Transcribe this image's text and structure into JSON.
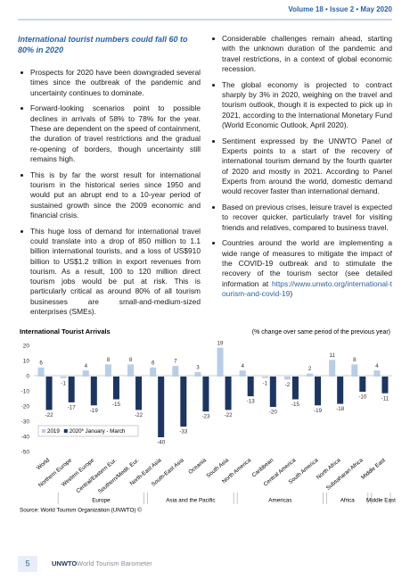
{
  "header": {
    "issue": "Volume 18 • Issue 2 • May 2020"
  },
  "left_column": {
    "heading": "International tourist numbers could fall 60 to 80% in 2020",
    "bullets": [
      "Prospects for 2020 have been downgraded several times since the outbreak of the pandemic and uncertainty continues to dominate.",
      "Forward-looking scenarios point to possible declines in arrivals of 58% to 78% for the year. These are dependent on the speed of containment, the duration of travel restrictions and the gradual re-opening of borders, though uncertainty still remains high.",
      "This is by far the worst result for international tourism in the historical series since 1950 and would put an abrupt end to a 10-year period of sustained growth since the 2009 economic and financial crisis.",
      "This huge loss of demand for international travel could translate into a drop of 850 million to 1.1 billion international tourists, and a loss of US$910 billion to US$1.2 trillion in export revenues from tourism. As a result, 100 to 120 million direct tourism jobs would be put at risk. This is particularly critical as around 80% of all tourism businesses are small-and-medium-sized enterprises (SMEs)."
    ]
  },
  "right_column": {
    "bullets": [
      "Considerable challenges remain ahead, starting with the unknown duration of the pandemic and travel restrictions, in a context of global economic recession.",
      "The global economy is projected to contract sharply by 3% in 2020, weighing on the travel and tourism outlook, though it is expected to pick up in 2021, according to the International Monetary Fund (World Economic Outlook, April 2020).",
      "Sentiment expressed by the UNWTO Panel of Experts points to a start of the recovery of international tourism demand by the fourth quarter of 2020 and mostly in 2021. According to Panel Experts from around the world, domestic demand would recover faster than international demand.",
      "Based on previous crises, leisure travel is expected to recover quicker, particularly travel for visiting friends and relatives, compared to business travel."
    ],
    "last_bullet": {
      "text": "Countries around the world are implementing a wide range of measures to mitigate the impact of the COVID-19 outbreak and to stimulate the recovery of the tourism sector (see detailed information at ",
      "link": "https://www.unwto.org/international-tourism-and-covid-19",
      "text_after": ")"
    }
  },
  "chart_data": {
    "type": "bar",
    "title": "International Tourist Arrivals",
    "subtitle": "(% change over same period of the previous year)",
    "categories": [
      "World",
      "Northern Europe",
      "Western Europe",
      "Central/Eastern Eur.",
      "Southern/Medit. Eur.",
      "North-East Asia",
      "South-East Asia",
      "Oceania",
      "South Asia",
      "North America",
      "Caribbean",
      "Central America",
      "South America",
      "North Africa",
      "Subsaharan Africa",
      "Middle East"
    ],
    "series": [
      {
        "name": "2019",
        "color": "#b8cde6",
        "values": [
          6,
          -1,
          4,
          8,
          8,
          6,
          7,
          3,
          19,
          4,
          -1,
          -2,
          2,
          11,
          8,
          4
        ]
      },
      {
        "name": "2020* January - March",
        "color": "#1c3563",
        "values": [
          -22,
          -17,
          -19,
          -15,
          -22,
          -40,
          -33,
          -23,
          -22,
          -13,
          -20,
          -15,
          -19,
          -18,
          -10,
          -11
        ]
      }
    ],
    "groups": [
      {
        "name": "Europe",
        "categories": [
          "Northern Europe",
          "Western Europe",
          "Central/Eastern Eur.",
          "Southern/Medit. Eur."
        ]
      },
      {
        "name": "Asia and the Pacific",
        "categories": [
          "North-East Asia",
          "South-East Asia",
          "Oceania",
          "South Asia"
        ]
      },
      {
        "name": "Americas",
        "categories": [
          "North America",
          "Caribbean",
          "Central America",
          "South America"
        ]
      },
      {
        "name": "Africa",
        "categories": [
          "North Africa",
          "Subsaharan Africa"
        ]
      },
      {
        "name": "Middle East",
        "categories": [
          "Middle East"
        ]
      }
    ],
    "ylim": [
      -50,
      20
    ],
    "yticks": [
      -50,
      -40,
      -30,
      -20,
      -10,
      0,
      10,
      20
    ],
    "grid": false,
    "legend": "lower left",
    "source": "Source: World Tourism Organization (UNWTO) ©"
  },
  "footer": {
    "page": "5",
    "brand": "UNWTO",
    "publication": "World Tourism Barometer"
  }
}
